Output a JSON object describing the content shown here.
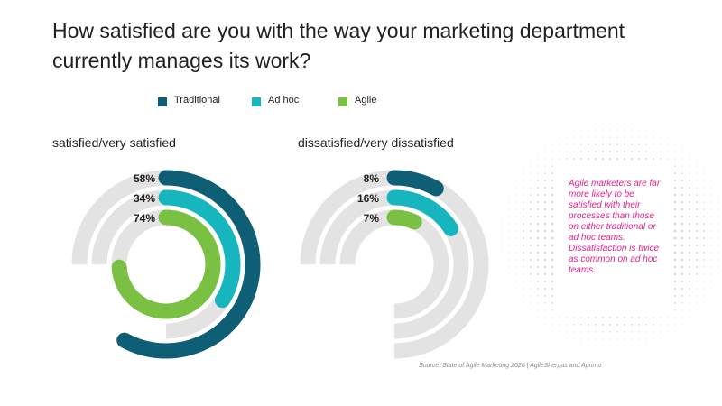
{
  "title": "How satisfied are you with the way your marketing department currently manages its work?",
  "legend": [
    {
      "label": "Traditional",
      "color": "#0e5f76"
    },
    {
      "label": "Ad hoc",
      "color": "#17b6bf"
    },
    {
      "label": "Agile",
      "color": "#7ac143"
    }
  ],
  "track_color": "#e3e3e3",
  "chart_data": [
    {
      "type": "radial-bar",
      "title": "satisfied/very satisfied",
      "series": [
        {
          "name": "Traditional",
          "value": 58,
          "label": "58%"
        },
        {
          "name": "Ad hoc",
          "value": 34,
          "label": "34%"
        },
        {
          "name": "Agile",
          "value": 74,
          "label": "74%"
        }
      ],
      "max": 100
    },
    {
      "type": "radial-bar",
      "title": "dissatisfied/very dissatisfied",
      "series": [
        {
          "name": "Traditional",
          "value": 8,
          "label": "8%"
        },
        {
          "name": "Ad hoc",
          "value": 16,
          "label": "16%"
        },
        {
          "name": "Agile",
          "value": 7,
          "label": "7%"
        }
      ],
      "max": 100
    }
  ],
  "callout": "Agile marketers are far more likely to be satisfied with their processes than those on either traditional or ad hoc teams. Dissatisfaction is twice as common on ad hoc teams.",
  "source": "Source: State of Agile Marketing 2020 | AgileSherpas and Aprimo"
}
